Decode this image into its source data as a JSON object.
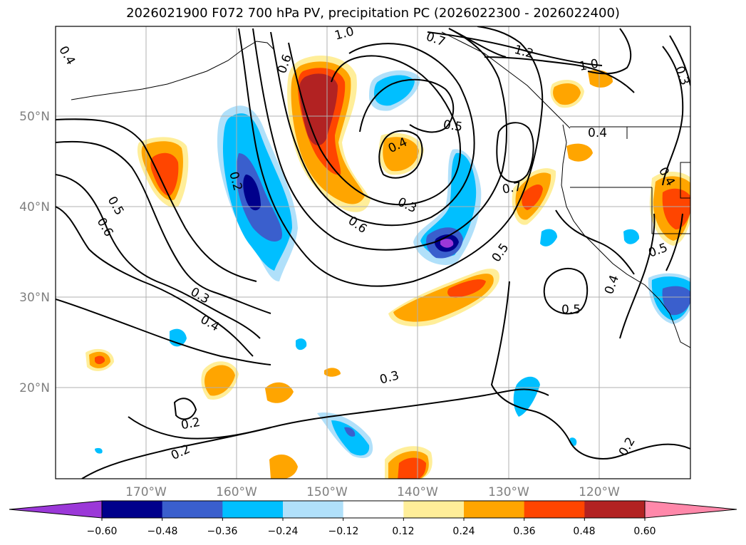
{
  "title": "2026021900 F072 700 hPa PV, precipitation PC (2026022300 - 2026022400)",
  "map": {
    "lon_labels": [
      "170°W",
      "160°W",
      "150°W",
      "140°W",
      "130°W",
      "120°W"
    ],
    "lat_labels": [
      "50°N",
      "40°N",
      "30°N",
      "20°N"
    ],
    "contour_labels": [
      "0.4",
      "1.0",
      "0.6",
      "0.7",
      "1.2",
      "1.0",
      "0.3",
      "0.5",
      "0.4",
      "0.4",
      "0.2",
      "0.5",
      "0.6",
      "0.3",
      "0.6",
      "0.7",
      "0.4",
      "0.5",
      "0.5",
      "0.3",
      "0.4",
      "0.4",
      "0.5",
      "0.3",
      "0.2",
      "0.2",
      "0.2"
    ]
  },
  "colorbar": {
    "ticks": [
      "−0.60",
      "−0.48",
      "−0.36",
      "−0.24",
      "−0.12",
      "0.12",
      "0.24",
      "0.36",
      "0.48",
      "0.60"
    ],
    "colors": [
      "#9b38d8",
      "#00008b",
      "#3a5fcd",
      "#00bfff",
      "#b0e0fa",
      "#ffffff",
      "#ffee99",
      "#ffa500",
      "#ff4500",
      "#b22222",
      "#ff88aa"
    ]
  }
}
